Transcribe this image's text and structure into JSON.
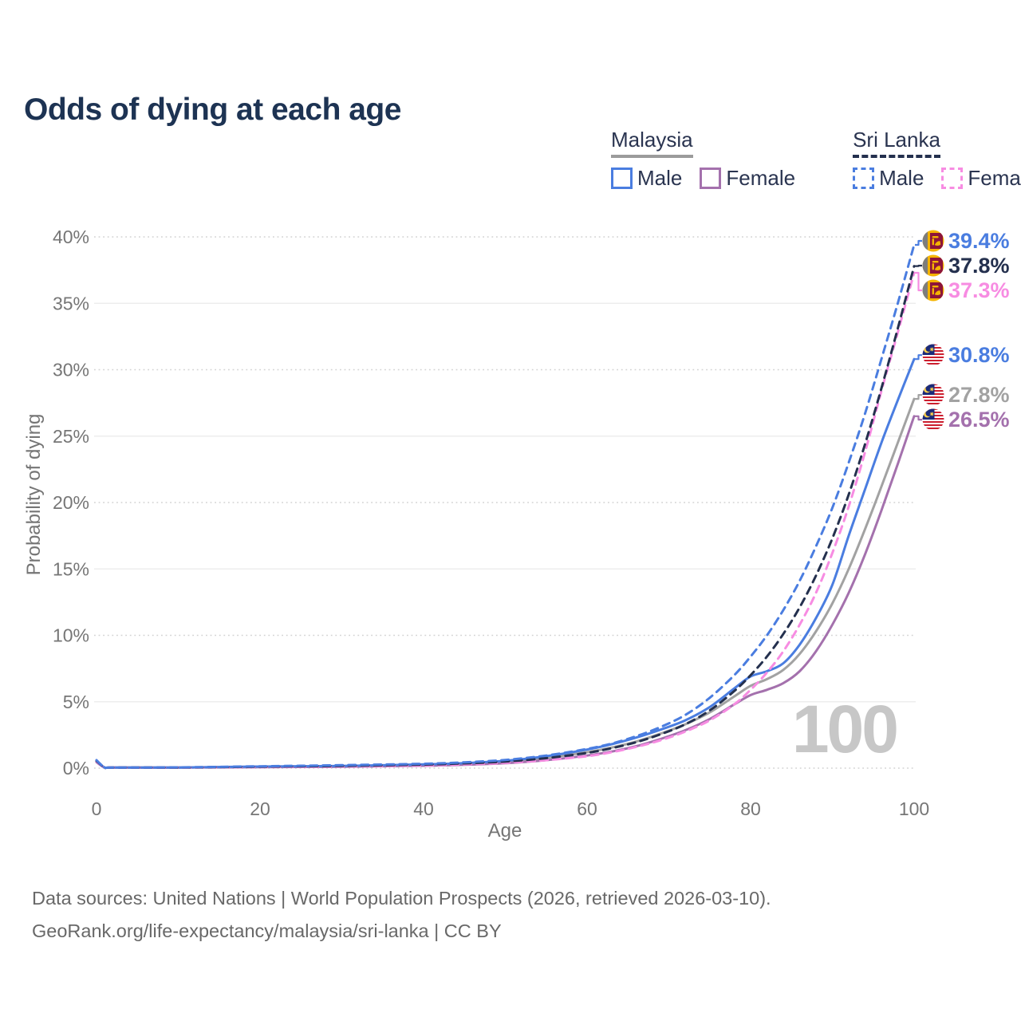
{
  "title": "Odds of dying at each age",
  "watermark_age": "100",
  "legend": {
    "groups": [
      {
        "label": "Malaysia",
        "line_style": "solid",
        "underline_color": "#9b9b9b",
        "items": [
          {
            "label": "Male",
            "color": "#4a7de0",
            "dashed": false
          },
          {
            "label": "Female",
            "color": "#a471ad",
            "dashed": false
          }
        ]
      },
      {
        "label": "Sri Lanka",
        "line_style": "dashed",
        "underline_color": "#24304e",
        "items": [
          {
            "label": "Male",
            "color": "#4a7de0",
            "dashed": true
          },
          {
            "label": "Female",
            "color": "#f78ce2",
            "dashed": true
          }
        ]
      }
    ]
  },
  "footer": {
    "line1": "Data sources: United Nations | World Population Prospects (2026, retrieved 2026-03-10).",
    "line2": "GeoRank.org/life-expectancy/malaysia/sri-lanka | CC BY"
  },
  "chart_data": {
    "type": "line",
    "title": "Odds of dying at each age",
    "xlabel": "Age",
    "ylabel": "Probability of dying",
    "x_range": [
      0,
      100
    ],
    "y_range_percent": [
      0,
      40
    ],
    "x_ticks": [
      0,
      20,
      40,
      60,
      80,
      100
    ],
    "y_ticks_percent": [
      0,
      5,
      10,
      15,
      20,
      25,
      30,
      35,
      40
    ],
    "grid": "horizontal",
    "legend_position": "top-right",
    "ages": [
      0,
      1,
      2,
      10,
      20,
      30,
      40,
      45,
      50,
      55,
      60,
      63,
      66,
      69,
      72,
      75,
      78,
      80,
      82,
      84,
      86,
      88,
      90,
      92,
      94,
      96,
      98,
      100
    ],
    "series": [
      {
        "name": "Sri Lanka Male",
        "country": "Sri Lanka",
        "sex": "Male",
        "color": "#4a7de0",
        "dashed": true,
        "flag": "lk",
        "end_label": "39.4%",
        "end_value": 39.4,
        "values": [
          0.6,
          0.06,
          0.05,
          0.06,
          0.14,
          0.22,
          0.33,
          0.44,
          0.62,
          0.95,
          1.45,
          1.85,
          2.4,
          3.1,
          4.0,
          5.3,
          7.0,
          8.4,
          10.0,
          11.9,
          14.1,
          16.7,
          19.6,
          23.0,
          26.7,
          30.8,
          35.0,
          39.4
        ]
      },
      {
        "name": "Sri Lanka Both sexes",
        "country": "Sri Lanka",
        "sex": "Both",
        "color": "#24304e",
        "dashed": true,
        "flag": "lk",
        "end_label": "37.8%",
        "end_value": 37.8,
        "values": [
          0.55,
          0.05,
          0.045,
          0.05,
          0.11,
          0.17,
          0.27,
          0.36,
          0.5,
          0.75,
          1.15,
          1.5,
          1.95,
          2.55,
          3.3,
          4.35,
          5.8,
          7.0,
          8.4,
          10.1,
          12.1,
          14.5,
          17.3,
          20.6,
          24.4,
          28.6,
          33.1,
          37.8
        ]
      },
      {
        "name": "Sri Lanka Female",
        "country": "Sri Lanka",
        "sex": "Female",
        "color": "#f78ce2",
        "dashed": true,
        "flag": "lk",
        "end_label": "37.3%",
        "end_value": 37.3,
        "values": [
          0.5,
          0.045,
          0.04,
          0.04,
          0.08,
          0.12,
          0.2,
          0.28,
          0.4,
          0.6,
          0.9,
          1.2,
          1.6,
          2.1,
          2.75,
          3.6,
          4.8,
          5.9,
          7.2,
          8.8,
          10.8,
          13.2,
          16.2,
          19.7,
          23.8,
          28.4,
          32.8,
          37.3
        ]
      },
      {
        "name": "Malaysia Male",
        "country": "Malaysia",
        "sex": "Male",
        "color": "#4a7de0",
        "dashed": false,
        "flag": "my",
        "end_label": "30.8%",
        "end_value": 30.8,
        "values": [
          0.55,
          0.05,
          0.05,
          0.05,
          0.12,
          0.17,
          0.28,
          0.38,
          0.55,
          0.9,
          1.4,
          1.8,
          2.3,
          2.9,
          3.6,
          4.6,
          6.0,
          6.9,
          7.3,
          7.9,
          9.3,
          11.3,
          13.8,
          17.5,
          21.0,
          24.5,
          27.7,
          30.8
        ]
      },
      {
        "name": "Malaysia Both sexes",
        "country": "Malaysia",
        "sex": "Both",
        "color": "#a2a2a2",
        "dashed": false,
        "flag": "my",
        "end_label": "27.8%",
        "end_value": 27.8,
        "values": [
          0.5,
          0.045,
          0.045,
          0.05,
          0.1,
          0.15,
          0.24,
          0.33,
          0.48,
          0.78,
          1.2,
          1.55,
          2.0,
          2.6,
          3.3,
          4.2,
          5.4,
          6.2,
          6.7,
          7.4,
          8.6,
          10.3,
          12.4,
          15.0,
          18.0,
          21.2,
          24.5,
          27.8
        ]
      },
      {
        "name": "Malaysia Female",
        "country": "Malaysia",
        "sex": "Female",
        "color": "#a471ad",
        "dashed": false,
        "flag": "my",
        "end_label": "26.5%",
        "end_value": 26.5,
        "values": [
          0.45,
          0.04,
          0.04,
          0.04,
          0.07,
          0.11,
          0.18,
          0.25,
          0.37,
          0.6,
          0.95,
          1.25,
          1.65,
          2.2,
          2.85,
          3.7,
          4.8,
          5.5,
          5.9,
          6.4,
          7.3,
          8.8,
          10.8,
          13.2,
          16.1,
          19.4,
          22.9,
          26.5
        ]
      }
    ]
  }
}
